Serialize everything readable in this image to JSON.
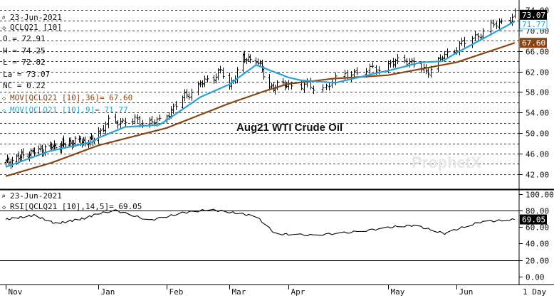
{
  "chart_data": [
    {
      "type": "line",
      "subtype": "ohlc-bars",
      "title": "Aug21 WTI Crude Oil",
      "date_label": "23-Jun-2021",
      "symbol": "QCLQ21 [10]",
      "readout": [
        {
          "label": "O",
          "value": "72.91"
        },
        {
          "label": "H",
          "value": "74.25"
        },
        {
          "label": "L",
          "value": "72.82"
        },
        {
          "label": "La",
          "value": "73.07"
        },
        {
          "label": "NC",
          "value": "0.22"
        }
      ],
      "legend": [
        {
          "name": "MOV[QCLQ21 [10],36]",
          "value": "67.60",
          "color": "#8b4513"
        },
        {
          "name": "MOV[QCLQ21 [10],9]",
          "value": "71.77",
          "color": "#29a3d6"
        }
      ],
      "y_ticks": [
        "74.00",
        "70.00",
        "66.00",
        "62.00",
        "58.00",
        "54.00",
        "50.00",
        "46.00",
        "42.00"
      ],
      "ylim": [
        39.9,
        75.4
      ],
      "grid": true,
      "last_price": "73.07",
      "ma_fast_last": "71.77",
      "ma_slow_last": "67.60",
      "watermark": "ProphetX",
      "x_anchor_dates": [
        "2020-11-02",
        "2020-12-01",
        "2021-01-04",
        "2021-02-01",
        "2021-03-01",
        "2021-04-01",
        "2021-05-03",
        "2021-06-01",
        "2021-06-23"
      ],
      "close_anchors": [
        {
          "date": "2020-11-02",
          "close": 44.2
        },
        {
          "date": "2020-11-16",
          "close": 46.0
        },
        {
          "date": "2020-11-30",
          "close": 47.2
        },
        {
          "date": "2020-12-15",
          "close": 48.2
        },
        {
          "date": "2020-12-31",
          "close": 48.5
        },
        {
          "date": "2021-01-08",
          "close": 52.0
        },
        {
          "date": "2021-01-15",
          "close": 52.4
        },
        {
          "date": "2021-01-29",
          "close": 52.2
        },
        {
          "date": "2021-02-08",
          "close": 56.8
        },
        {
          "date": "2021-02-16",
          "close": 59.5
        },
        {
          "date": "2021-02-25",
          "close": 62.0
        },
        {
          "date": "2021-03-01",
          "close": 59.0
        },
        {
          "date": "2021-03-08",
          "close": 64.4
        },
        {
          "date": "2021-03-15",
          "close": 64.5
        },
        {
          "date": "2021-03-22",
          "close": 59.0
        },
        {
          "date": "2021-04-01",
          "close": 59.5
        },
        {
          "date": "2021-04-12",
          "close": 58.8
        },
        {
          "date": "2021-04-19",
          "close": 61.4
        },
        {
          "date": "2021-04-28",
          "close": 62.5
        },
        {
          "date": "2021-05-10",
          "close": 64.5
        },
        {
          "date": "2021-05-19",
          "close": 62.0
        },
        {
          "date": "2021-05-28",
          "close": 65.5
        },
        {
          "date": "2021-06-07",
          "close": 68.5
        },
        {
          "date": "2021-06-15",
          "close": 71.0
        },
        {
          "date": "2021-06-23",
          "close": 73.07
        }
      ],
      "ma_fast_anchors": [
        {
          "date": "2020-11-02",
          "value": 43.4
        },
        {
          "date": "2020-11-30",
          "value": 46.5
        },
        {
          "date": "2020-12-31",
          "value": 48.3
        },
        {
          "date": "2021-01-15",
          "value": 51.2
        },
        {
          "date": "2021-01-29",
          "value": 51.6
        },
        {
          "date": "2021-02-16",
          "value": 57.0
        },
        {
          "date": "2021-03-01",
          "value": 59.5
        },
        {
          "date": "2021-03-15",
          "value": 63.3
        },
        {
          "date": "2021-03-24",
          "value": 62.0
        },
        {
          "date": "2021-04-05",
          "value": 60.3
        },
        {
          "date": "2021-04-16",
          "value": 59.8
        },
        {
          "date": "2021-04-30",
          "value": 61.8
        },
        {
          "date": "2021-05-17",
          "value": 63.8
        },
        {
          "date": "2021-05-26",
          "value": 64.0
        },
        {
          "date": "2021-06-07",
          "value": 67.3
        },
        {
          "date": "2021-06-23",
          "value": 71.77
        }
      ],
      "ma_slow_anchors": [
        {
          "date": "2020-11-02",
          "value": 41.6
        },
        {
          "date": "2020-12-01",
          "value": 44.2
        },
        {
          "date": "2021-01-04",
          "value": 47.6
        },
        {
          "date": "2021-02-01",
          "value": 51.0
        },
        {
          "date": "2021-03-01",
          "value": 55.8
        },
        {
          "date": "2021-03-22",
          "value": 58.5
        },
        {
          "date": "2021-04-01",
          "value": 59.6
        },
        {
          "date": "2021-04-15",
          "value": 60.6
        },
        {
          "date": "2021-05-03",
          "value": 61.3
        },
        {
          "date": "2021-06-01",
          "value": 63.8
        },
        {
          "date": "2021-06-23",
          "value": 67.6
        }
      ]
    },
    {
      "type": "line",
      "date_label": "23-Jun-2021",
      "label": "RSI[QCLQ21 [10],14,5]",
      "value": "69.05",
      "y_ticks": [
        "100.00",
        "80.00",
        "60.00",
        "40.00",
        "20.00",
        "0.00"
      ],
      "reference_lines": [
        80,
        20
      ],
      "ylim": [
        -8,
        104
      ],
      "rsi_anchors": [
        {
          "date": "2020-11-02",
          "value": 69
        },
        {
          "date": "2020-11-20",
          "value": 74
        },
        {
          "date": "2020-12-04",
          "value": 64
        },
        {
          "date": "2020-12-24",
          "value": 70
        },
        {
          "date": "2021-01-11",
          "value": 80
        },
        {
          "date": "2021-01-25",
          "value": 68
        },
        {
          "date": "2021-02-08",
          "value": 77
        },
        {
          "date": "2021-02-20",
          "value": 81
        },
        {
          "date": "2021-03-04",
          "value": 77
        },
        {
          "date": "2021-03-15",
          "value": 73
        },
        {
          "date": "2021-03-25",
          "value": 52
        },
        {
          "date": "2021-04-08",
          "value": 50
        },
        {
          "date": "2021-04-20",
          "value": 53
        },
        {
          "date": "2021-05-05",
          "value": 60
        },
        {
          "date": "2021-05-14",
          "value": 62
        },
        {
          "date": "2021-05-27",
          "value": 52
        },
        {
          "date": "2021-06-10",
          "value": 66
        },
        {
          "date": "2021-06-23",
          "value": 69
        }
      ]
    }
  ],
  "x_axis": {
    "labels": [
      "Nov",
      "Jan",
      "Feb",
      "Mar",
      "Apr",
      "May",
      "Jun"
    ],
    "label_dates": [
      "2020-11-02",
      "2021-01-04",
      "2021-02-01",
      "2021-03-01",
      "2021-04-01",
      "2021-05-03",
      "2021-06-01"
    ],
    "period": "1 Day"
  },
  "colors": {
    "price_bar": "#000000",
    "ma_fast": "#29a3d6",
    "ma_slow": "#8b4513",
    "last_price_badge": "#000000",
    "ma_slow_badge": "#8b4513",
    "ma_fast_badge": "#ffffff",
    "rsi_line": "#000000"
  }
}
